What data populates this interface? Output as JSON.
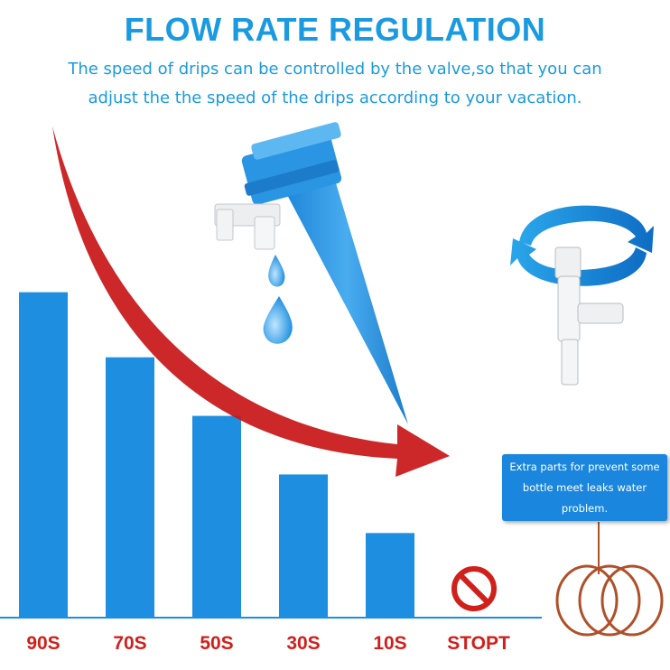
{
  "header": {
    "title": "FLOW RATE REGULATION",
    "subtitle_line1": "The speed of drips can be controlled by the valve,so that you can",
    "subtitle_line2": "adjust the the speed of the drips according to your vacation."
  },
  "note": {
    "line1": "Extra parts for prevent some",
    "line2": "bottle meet leaks water",
    "line3": "problem."
  },
  "colors": {
    "accent_blue": "#1a9ae0",
    "bar_blue": "#1e8fe0",
    "label_red": "#d0201c",
    "arrow_red": "#c8181a",
    "ring_brown": "#b0502a"
  },
  "chart_data": {
    "type": "bar",
    "categories": [
      "90S",
      "70S",
      "50S",
      "30S",
      "10S",
      "STOPT"
    ],
    "values": [
      5,
      4,
      3.1,
      2.2,
      1.3,
      0
    ],
    "ylim": [
      0,
      5.3
    ],
    "grid": false,
    "stop_icon": "prohibited-sign-icon"
  },
  "illustrations": {
    "main": "drip-spike-valve-icon",
    "drops": "water-drop-icon",
    "rotate": "rotate-arrows-icon",
    "small_valve": "valve-closeup-icon",
    "rings": "o-ring-icon"
  }
}
